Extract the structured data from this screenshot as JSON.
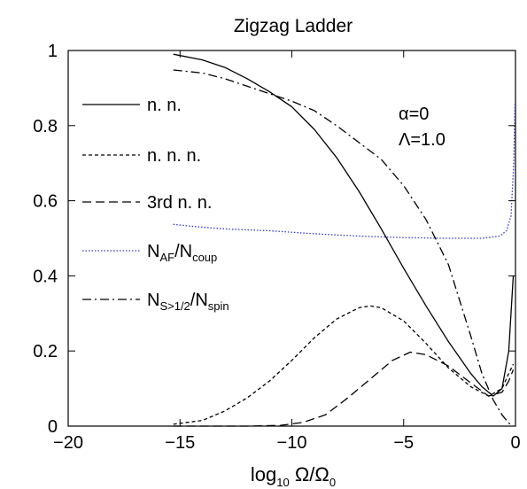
{
  "chart_data": {
    "type": "line",
    "title": "Zigzag Ladder",
    "xlabel": "log10 Ω/Ω0",
    "xlabel_parts": {
      "main": "log",
      "sub": "10",
      "rest": " Ω/Ω",
      "sub2": "0"
    },
    "ylabel": "",
    "xlim": [
      -20,
      0
    ],
    "ylim": [
      0,
      1
    ],
    "xticks": [
      -20,
      -15,
      -10,
      -5,
      0
    ],
    "xtick_labels": [
      "−20",
      "−15",
      "−10",
      "−5",
      "0"
    ],
    "yticks": [
      0,
      0.2,
      0.4,
      0.6,
      0.8,
      1
    ],
    "ytick_labels": [
      "0",
      "0.2",
      "0.4",
      "0.6",
      "0.8",
      "1"
    ],
    "grid": false,
    "legend_position": "left",
    "annotations": [
      "α=0",
      "Λ=1.0"
    ],
    "series": [
      {
        "name": "n. n.",
        "style": "solid",
        "color": "#000000",
        "points": [
          [
            -15.3,
            0.99
          ],
          [
            -14,
            0.975
          ],
          [
            -13,
            0.955
          ],
          [
            -12,
            0.925
          ],
          [
            -11,
            0.89
          ],
          [
            -10,
            0.85
          ],
          [
            -9,
            0.79
          ],
          [
            -8,
            0.715
          ],
          [
            -7,
            0.625
          ],
          [
            -6,
            0.525
          ],
          [
            -5,
            0.42
          ],
          [
            -4,
            0.32
          ],
          [
            -3,
            0.225
          ],
          [
            -2,
            0.14
          ],
          [
            -1.5,
            0.105
          ],
          [
            -1.0,
            0.08
          ],
          [
            -0.6,
            0.1
          ],
          [
            -0.3,
            0.2
          ],
          [
            -0.1,
            0.4
          ]
        ]
      },
      {
        "name": "n. n. n.",
        "style": "dashed",
        "color": "#000000",
        "points": [
          [
            -15.3,
            0.005
          ],
          [
            -14,
            0.015
          ],
          [
            -13,
            0.04
          ],
          [
            -12,
            0.075
          ],
          [
            -11,
            0.12
          ],
          [
            -10,
            0.175
          ],
          [
            -9,
            0.235
          ],
          [
            -8,
            0.285
          ],
          [
            -7,
            0.315
          ],
          [
            -6.5,
            0.32
          ],
          [
            -6,
            0.315
          ],
          [
            -5,
            0.28
          ],
          [
            -4,
            0.22
          ],
          [
            -3,
            0.155
          ],
          [
            -2,
            0.105
          ],
          [
            -1.2,
            0.08
          ],
          [
            -0.6,
            0.1
          ],
          [
            -0.3,
            0.14
          ],
          [
            -0.1,
            0.165
          ]
        ]
      },
      {
        "name": "3rd n. n.",
        "style": "longdash",
        "color": "#000000",
        "points": [
          [
            -15.3,
            0.0
          ],
          [
            -12,
            0.0
          ],
          [
            -10.5,
            0.002
          ],
          [
            -9.5,
            0.01
          ],
          [
            -8.5,
            0.03
          ],
          [
            -7.5,
            0.075
          ],
          [
            -6.5,
            0.125
          ],
          [
            -5.5,
            0.175
          ],
          [
            -4.7,
            0.197
          ],
          [
            -4,
            0.19
          ],
          [
            -3,
            0.16
          ],
          [
            -2,
            0.115
          ],
          [
            -1.2,
            0.08
          ],
          [
            -0.6,
            0.09
          ],
          [
            -0.3,
            0.12
          ],
          [
            -0.1,
            0.15
          ]
        ]
      },
      {
        "name": "N_AF/N_coup",
        "style": "dotted",
        "color": "#3333cc",
        "points": [
          [
            -15.3,
            0.537
          ],
          [
            -14.5,
            0.532
          ],
          [
            -13,
            0.525
          ],
          [
            -11,
            0.52
          ],
          [
            -9,
            0.512
          ],
          [
            -7,
            0.506
          ],
          [
            -5,
            0.502
          ],
          [
            -3,
            0.5
          ],
          [
            -1.5,
            0.5
          ],
          [
            -0.7,
            0.506
          ],
          [
            -0.4,
            0.52
          ],
          [
            -0.2,
            0.56
          ],
          [
            -0.08,
            0.7
          ],
          [
            -0.02,
            0.86
          ]
        ]
      },
      {
        "name": "N_S>1/2/N_spin",
        "style": "dashdot",
        "color": "#000000",
        "points": [
          [
            -15.3,
            0.948
          ],
          [
            -14,
            0.94
          ],
          [
            -13,
            0.925
          ],
          [
            -12,
            0.905
          ],
          [
            -11,
            0.885
          ],
          [
            -10,
            0.865
          ],
          [
            -9,
            0.84
          ],
          [
            -8,
            0.8
          ],
          [
            -7,
            0.755
          ],
          [
            -6,
            0.71
          ],
          [
            -5,
            0.64
          ],
          [
            -4,
            0.55
          ],
          [
            -3,
            0.43
          ],
          [
            -2,
            0.24
          ],
          [
            -1.5,
            0.14
          ],
          [
            -1.0,
            0.07
          ],
          [
            -0.6,
            0.03
          ],
          [
            -0.3,
            0.008
          ],
          [
            -0.1,
            0.0
          ]
        ]
      }
    ]
  }
}
